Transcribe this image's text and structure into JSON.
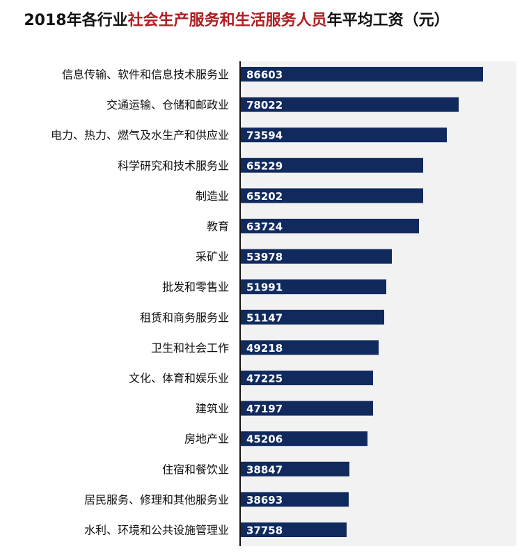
{
  "chart_data": {
    "type": "bar",
    "orientation": "horizontal",
    "title_parts": [
      {
        "text": "2018年各行业",
        "highlight": false
      },
      {
        "text": "社会生产服务和生活服务人员",
        "highlight": true
      },
      {
        "text": "年平均工资（元）",
        "highlight": false
      }
    ],
    "categories": [
      "信息传输、软件和信息技术服务业",
      "交通运输、仓储和邮政业",
      "电力、热力、燃气及水生产和供应业",
      "科学研究和技术服务业",
      "制造业",
      "教育",
      "采矿业",
      "批发和零售业",
      "租赁和商务服务业",
      "卫生和社会工作",
      "文化、体育和娱乐业",
      "建筑业",
      "房地产业",
      "住宿和餐饮业",
      "居民服务、修理和其他服务业",
      "水利、环境和公共设施管理业"
    ],
    "values": [
      86603,
      78022,
      73594,
      65229,
      65202,
      63724,
      53978,
      51991,
      51147,
      49218,
      47225,
      47197,
      45206,
      38847,
      38693,
      37758
    ],
    "xlim": [
      0,
      100000
    ],
    "grid": false,
    "legend": "none",
    "data_labels": "inside-bar-start",
    "colors": {
      "bar": "#112a5e",
      "highlight_title": "#b01e23",
      "plot_background": "#f2f2f2",
      "axis": "#111111"
    }
  }
}
